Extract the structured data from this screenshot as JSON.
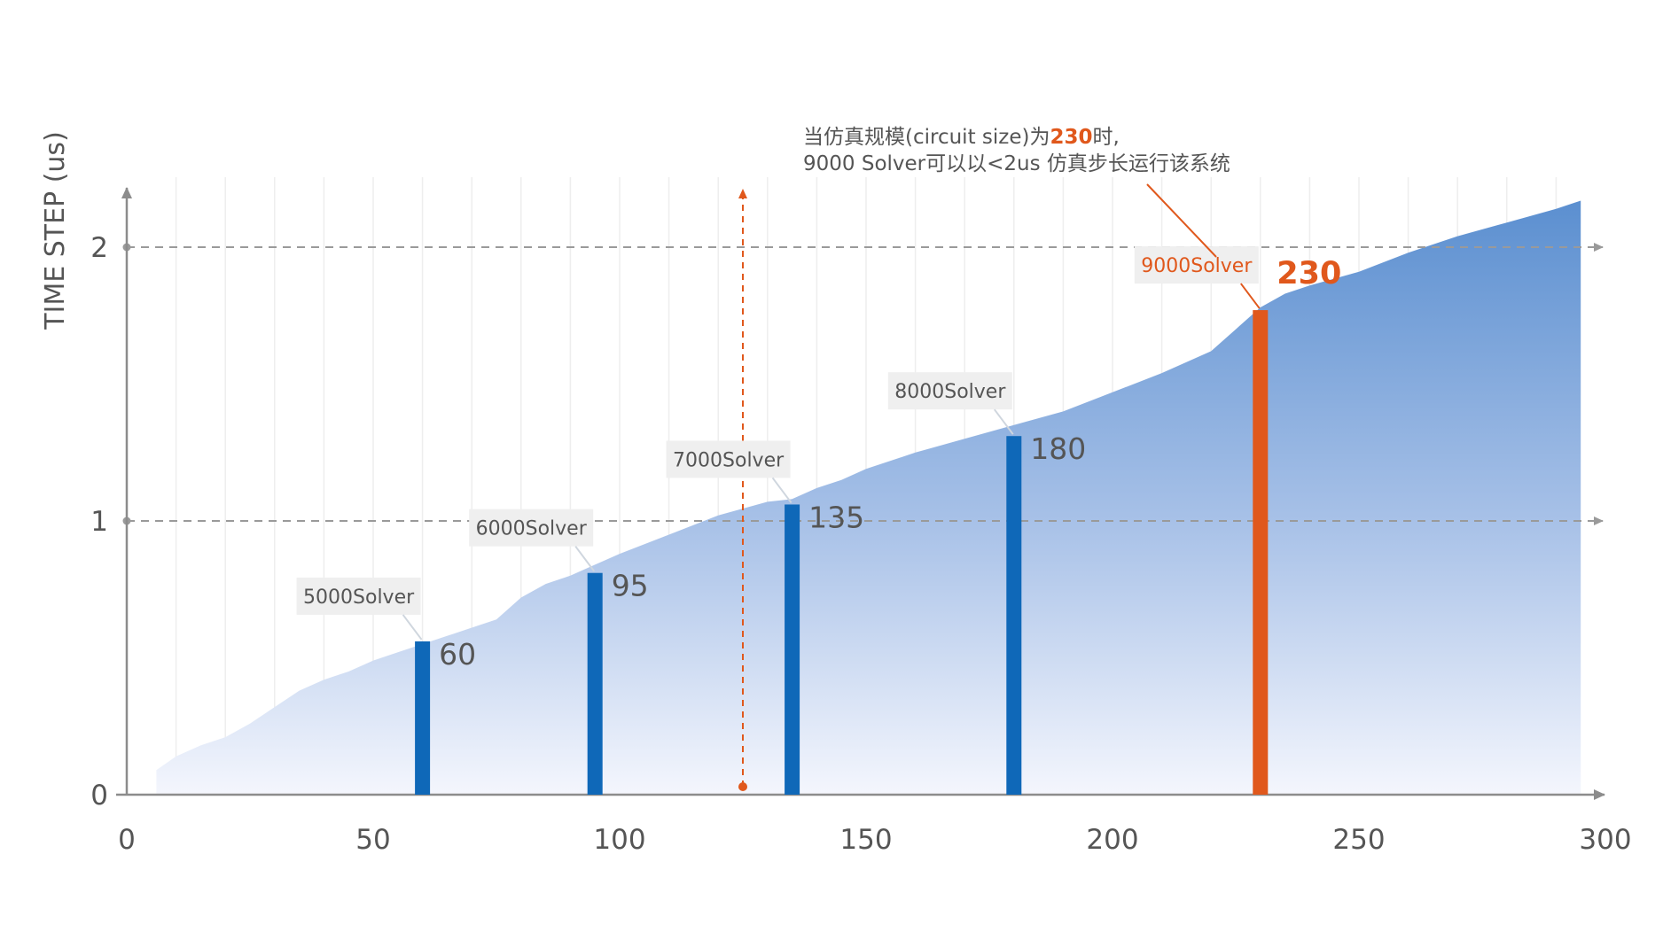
{
  "chart_data": {
    "type": "bar",
    "ylabel": "TIME STEP (us)",
    "xlim": [
      0,
      300
    ],
    "ylim": [
      0,
      2.2
    ],
    "x_ticks": [
      "0",
      "50",
      "100",
      "150",
      "200",
      "250",
      "300"
    ],
    "y_ticks": [
      "0",
      "1",
      "2"
    ],
    "reference_lines": [
      1,
      2
    ],
    "marker_x": 125,
    "area": {
      "x": [
        6,
        10,
        15,
        20,
        25,
        30,
        35,
        40,
        45,
        50,
        55,
        60,
        65,
        70,
        75,
        80,
        85,
        90,
        95,
        100,
        110,
        120,
        130,
        135,
        140,
        145,
        150,
        160,
        170,
        180,
        190,
        200,
        210,
        215,
        220,
        225,
        230,
        235,
        240,
        250,
        260,
        270,
        280,
        290,
        295
      ],
      "y": [
        0.09,
        0.14,
        0.18,
        0.21,
        0.26,
        0.32,
        0.38,
        0.42,
        0.45,
        0.49,
        0.52,
        0.55,
        0.58,
        0.61,
        0.64,
        0.72,
        0.77,
        0.8,
        0.84,
        0.88,
        0.95,
        1.02,
        1.07,
        1.08,
        1.12,
        1.15,
        1.19,
        1.25,
        1.3,
        1.35,
        1.4,
        1.47,
        1.54,
        1.58,
        1.62,
        1.7,
        1.78,
        1.83,
        1.86,
        1.91,
        1.98,
        2.04,
        2.09,
        2.14,
        2.17
      ]
    },
    "bars": [
      {
        "x": 60,
        "value": 0.56,
        "label": "5000Solver",
        "size_label": "60",
        "color": "#0f68b8"
      },
      {
        "x": 95,
        "value": 0.81,
        "label": "6000Solver",
        "size_label": "95",
        "color": "#0f68b8"
      },
      {
        "x": 135,
        "value": 1.06,
        "label": "7000Solver",
        "size_label": "135",
        "color": "#0f68b8"
      },
      {
        "x": 180,
        "value": 1.31,
        "label": "8000Solver",
        "size_label": "180",
        "color": "#0f68b8"
      },
      {
        "x": 230,
        "value": 1.77,
        "label": "9000Solver",
        "size_label": "230",
        "color": "#e0581c"
      }
    ]
  },
  "annotation": {
    "line1_before": "当仿真规模(circuit size)为",
    "line1_highlight": "230",
    "line1_after": "时,",
    "line2": "9000 Solver可以以<2us 仿真步长运行该系统"
  },
  "colors": {
    "bar_blue": "#0f68b8",
    "highlight_orange": "#e0581c",
    "area_top": "#5b8fd0",
    "area_bottom": "#f4f6fd",
    "axis": "#8c8c8c"
  }
}
